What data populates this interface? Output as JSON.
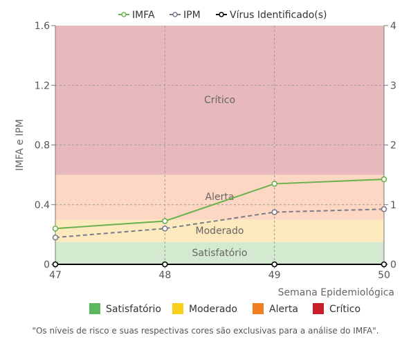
{
  "chart_data": {
    "type": "line",
    "x": [
      47,
      48,
      49,
      50
    ],
    "xlabel": "Semana Epidemiológica",
    "ylabel": "IMFA e IPM",
    "ylim": [
      0,
      1.6
    ],
    "y_ticks": [
      "0",
      "0.4",
      "0.8",
      "1.2",
      "1.6"
    ],
    "y2lim": [
      0,
      4
    ],
    "y2_ticks": [
      "0",
      "1",
      "2",
      "3",
      "4"
    ],
    "x_ticks": [
      "47",
      "48",
      "49",
      "50"
    ],
    "grid": true,
    "legend_position": "top",
    "series": [
      {
        "name": "IMFA",
        "axis": "left",
        "values": [
          0.24,
          0.29,
          0.54,
          0.57
        ],
        "color": "#6ab04c",
        "style": "solid"
      },
      {
        "name": "IPM",
        "axis": "left",
        "values": [
          0.18,
          0.24,
          0.35,
          0.37
        ],
        "color": "#7a7a8c",
        "style": "dashed"
      },
      {
        "name": "Vírus Identificado(s)",
        "axis": "right",
        "values": [
          0,
          0,
          0,
          0
        ],
        "color": "#000000",
        "style": "solid"
      }
    ],
    "bands": [
      {
        "label": "Satisfatório",
        "from": 0,
        "to": 0.15,
        "color": "#d4ead0"
      },
      {
        "label": "Moderado",
        "from": 0.15,
        "to": 0.3,
        "color": "#fde9be"
      },
      {
        "label": "Alerta",
        "from": 0.3,
        "to": 0.6,
        "color": "#fcd7c3"
      },
      {
        "label": "Crítico",
        "from": 0.6,
        "to": 1.6,
        "color": "#e8b9bc"
      }
    ],
    "risk_legend": [
      {
        "label": "Satisfatório",
        "color": "#5cb85c"
      },
      {
        "label": "Moderado",
        "color": "#f7cf1c"
      },
      {
        "label": "Alerta",
        "color": "#f07f22"
      },
      {
        "label": "Crítico",
        "color": "#c8202a"
      }
    ],
    "footnote": "\"Os níveis de risco e suas respectivas cores são exclusivas para a análise do IMFA\"."
  }
}
